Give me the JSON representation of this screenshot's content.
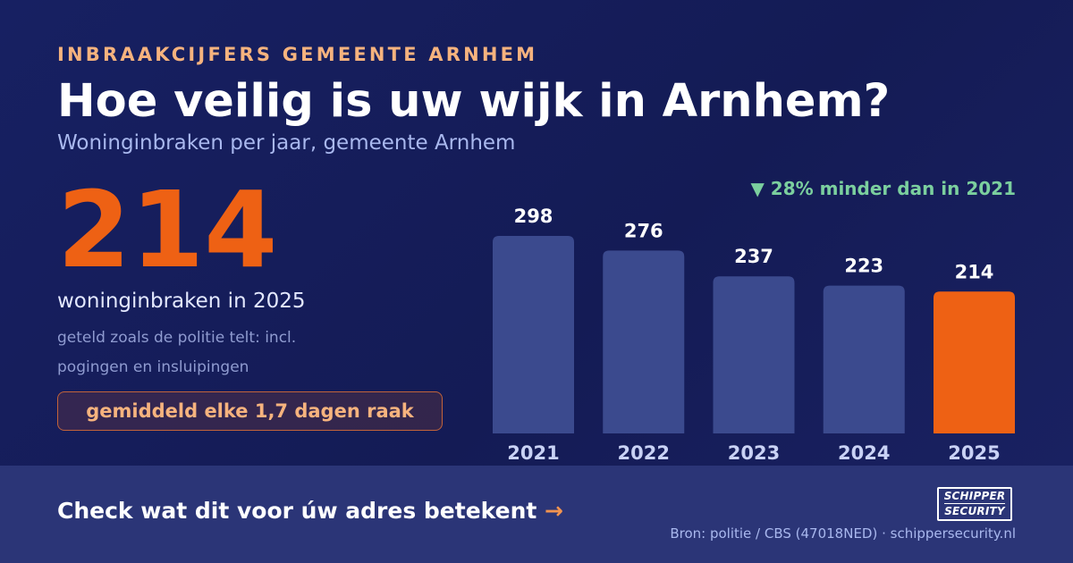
{
  "header": {
    "kicker": "INBRAAKCIJFERS GEMEENTE ARNHEM",
    "title": "Hoe veilig is uw wijk in Arnhem?",
    "subtitle": "Woninginbraken per jaar, gemeente Arnhem"
  },
  "highlight": {
    "value": "214",
    "caption": "woninginbraken in 2025",
    "note": "geteld zoals de politie telt: incl. pogingen en insluipingen",
    "badge": "gemiddeld elke 1,7 dagen raak"
  },
  "delta": "▼ 28% minder dan in 2021",
  "chart_data": {
    "type": "bar",
    "categories": [
      "2021",
      "2022",
      "2023",
      "2024",
      "2025"
    ],
    "values": [
      298,
      276,
      237,
      223,
      214
    ],
    "highlight_index": 4,
    "ylim": [
      0,
      298
    ],
    "grid": false,
    "colors": {
      "bar": "#3b4a8e",
      "highlight": "#ee6114",
      "value_label": "#ffffff",
      "category_label": "#c9d2f5"
    }
  },
  "footer": {
    "cta": "Check wat dit voor úw adres betekent",
    "cta_arrow": "→",
    "logo_line1": "SCHIPPER",
    "logo_line2": "SECURITY",
    "source": "Bron: politie / CBS (47018NED) · schippersecurity.nl"
  },
  "colors": {
    "background": "#141b55",
    "accent": "#ee6114",
    "kicker": "#f6b37e",
    "positive": "#7bcf9e",
    "footer_bg": "#2b3577"
  }
}
